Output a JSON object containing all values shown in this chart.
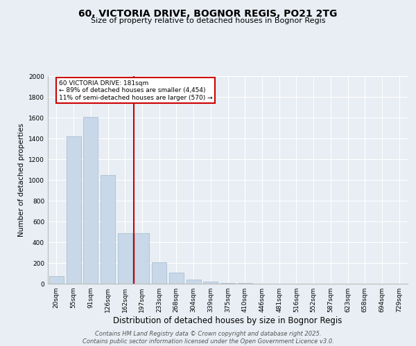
{
  "title": "60, VICTORIA DRIVE, BOGNOR REGIS, PO21 2TG",
  "subtitle": "Size of property relative to detached houses in Bognor Regis",
  "xlabel": "Distribution of detached houses by size in Bognor Regis",
  "ylabel": "Number of detached properties",
  "categories": [
    "20sqm",
    "55sqm",
    "91sqm",
    "126sqm",
    "162sqm",
    "197sqm",
    "233sqm",
    "268sqm",
    "304sqm",
    "339sqm",
    "375sqm",
    "410sqm",
    "446sqm",
    "481sqm",
    "516sqm",
    "552sqm",
    "587sqm",
    "623sqm",
    "658sqm",
    "694sqm",
    "729sqm"
  ],
  "values": [
    75,
    1420,
    1610,
    1050,
    490,
    490,
    210,
    105,
    40,
    20,
    10,
    5,
    0,
    0,
    0,
    0,
    0,
    0,
    0,
    0,
    0
  ],
  "bar_color": "#c8d8e8",
  "bar_edge_color": "#a0b8cc",
  "vline_color": "#cc0000",
  "annotation_text": "60 VICTORIA DRIVE: 181sqm\n← 89% of detached houses are smaller (4,454)\n11% of semi-detached houses are larger (570) →",
  "annotation_box_color": "#cc0000",
  "ylim": [
    0,
    2000
  ],
  "yticks": [
    0,
    200,
    400,
    600,
    800,
    1000,
    1200,
    1400,
    1600,
    1800,
    2000
  ],
  "footnote": "Contains HM Land Registry data © Crown copyright and database right 2025.\nContains public sector information licensed under the Open Government Licence v3.0.",
  "bg_color": "#e8eef4",
  "plot_bg_color": "#e8eef4",
  "grid_color": "#ffffff",
  "title_fontsize": 10,
  "subtitle_fontsize": 8,
  "xlabel_fontsize": 8.5,
  "ylabel_fontsize": 7.5,
  "tick_fontsize": 6.5,
  "footnote_fontsize": 6,
  "annot_fontsize": 6.5
}
